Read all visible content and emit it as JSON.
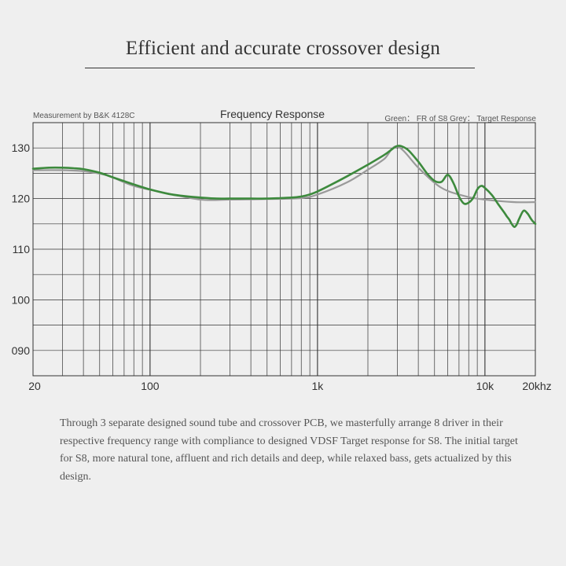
{
  "page": {
    "title": "Efficient and accurate crossover design",
    "description": "Through 3 separate designed sound tube and crossover PCB, we masterfully arrange 8 driver in their respective frequency range with compliance to designed VDSF Target response for S8. The initial target for S8, more natural tone, affluent and rich details and deep, while relaxed bass, gets actualized by this design."
  },
  "chart_data": {
    "type": "line",
    "title": "Frequency Response",
    "note_left": "Measurement by B&K 4128C",
    "legend_text": "Green： FR of S8    Grey： Target Response",
    "xscale": "log",
    "xlim": [
      20,
      20000
    ],
    "ylim": [
      85,
      135
    ],
    "x_tick_labels": [
      {
        "value": 20,
        "label": "20"
      },
      {
        "value": 100,
        "label": "100"
      },
      {
        "value": 1000,
        "label": "1k"
      },
      {
        "value": 10000,
        "label": "10k"
      },
      {
        "value": 20000,
        "label": "20khz"
      }
    ],
    "y_tick_labels": [
      {
        "value": 130,
        "label": "130"
      },
      {
        "value": 120,
        "label": "120"
      },
      {
        "value": 110,
        "label": "110"
      },
      {
        "value": 100,
        "label": "100"
      },
      {
        "value": 90,
        "label": "090"
      }
    ],
    "grid": true,
    "series": [
      {
        "name": "Target Response",
        "color": "#9a9a9a",
        "x": [
          20,
          30,
          40,
          55,
          80,
          120,
          200,
          300,
          500,
          800,
          1000,
          1500,
          2000,
          2500,
          3000,
          4000,
          5000,
          6000,
          8000,
          10000,
          15000,
          20000
        ],
        "y": [
          125.6,
          125.6,
          125.4,
          124.6,
          122.5,
          121.2,
          119.8,
          119.8,
          119.9,
          120.1,
          120.8,
          123.2,
          125.7,
          127.8,
          130.3,
          126.1,
          123.1,
          121.5,
          120.3,
          119.8,
          119.3,
          119.3
        ]
      },
      {
        "name": "FR of S8",
        "color": "#3d8a3d",
        "x": [
          20,
          25,
          30,
          35,
          40,
          50,
          60,
          80,
          100,
          130,
          160,
          200,
          250,
          300,
          400,
          500,
          600,
          700,
          800,
          900,
          1000,
          1200,
          1500,
          2000,
          2500,
          2800,
          3000,
          3200,
          3500,
          4000,
          4500,
          5000,
          5500,
          6000,
          6500,
          7000,
          7500,
          8000,
          8500,
          9000,
          9500,
          10000,
          11000,
          12000,
          13000,
          13500,
          14000,
          14500,
          15000,
          15500,
          16000,
          17000,
          18000,
          19000,
          20000
        ],
        "y": [
          125.9,
          126.1,
          126.1,
          126.0,
          125.8,
          125.1,
          124.2,
          122.8,
          121.8,
          120.9,
          120.5,
          120.2,
          120.0,
          120.0,
          120.0,
          120.0,
          120.1,
          120.2,
          120.4,
          120.8,
          121.4,
          122.7,
          124.4,
          126.7,
          128.6,
          129.8,
          130.4,
          130.3,
          129.5,
          127.3,
          125.0,
          123.5,
          123.3,
          124.7,
          123.0,
          120.4,
          119.0,
          119.2,
          120.1,
          121.8,
          122.5,
          122.1,
          120.7,
          118.9,
          117.3,
          116.5,
          115.8,
          114.9,
          114.4,
          114.9,
          116.0,
          117.6,
          117.0,
          115.8,
          115.0
        ]
      }
    ]
  }
}
